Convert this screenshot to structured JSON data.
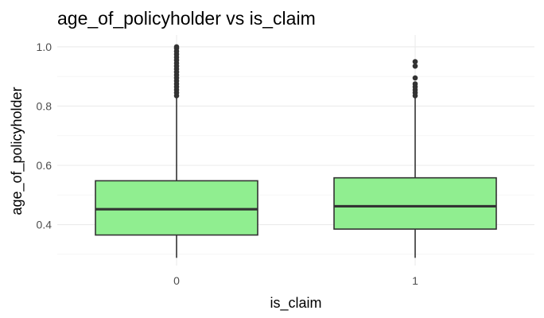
{
  "chart_data": {
    "type": "boxplot",
    "title": "age_of_policyholder vs is_claim",
    "xlabel": "is_claim",
    "ylabel": "age_of_policyholder",
    "categories": [
      "0",
      "1"
    ],
    "ylim": [
      0.262,
      1.04
    ],
    "yticks": [
      0.4,
      0.6,
      0.8,
      1.0
    ],
    "ytick_labels": [
      "0.4",
      "0.6",
      "0.8",
      "1.0"
    ],
    "fill_color": "#90ee90",
    "line_color": "#333333",
    "grid": true,
    "legend": "none",
    "boxes": [
      {
        "category": "0",
        "whisker_low": 0.288,
        "q1": 0.365,
        "median": 0.452,
        "q3": 0.548,
        "whisker_high": 0.827,
        "outliers": [
          0.835,
          0.845,
          0.855,
          0.865,
          0.875,
          0.885,
          0.895,
          0.905,
          0.915,
          0.925,
          0.935,
          0.945,
          0.955,
          0.965,
          0.975,
          0.985,
          0.995,
          1.0
        ]
      },
      {
        "category": "1",
        "whisker_low": 0.288,
        "q1": 0.385,
        "median": 0.462,
        "q3": 0.558,
        "whisker_high": 0.827,
        "outliers": [
          0.835,
          0.845,
          0.855,
          0.865,
          0.875,
          0.895,
          0.935,
          0.95
        ]
      }
    ]
  }
}
